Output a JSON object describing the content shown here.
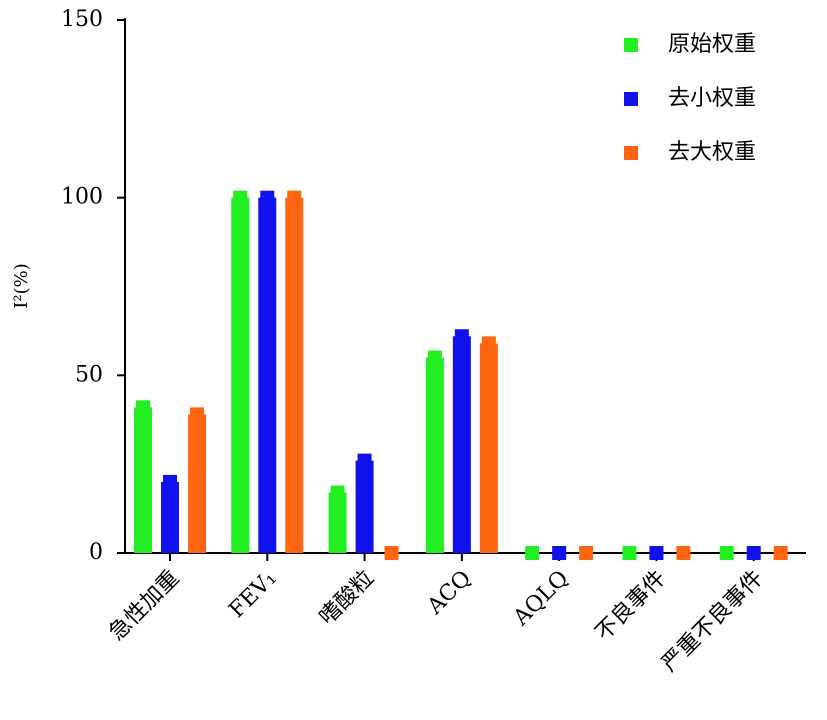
{
  "chart_data": {
    "type": "bar",
    "y_label": "I²(%)",
    "categories": [
      "急性加重",
      "FEV₁",
      "嗜酸粒",
      "ACQ",
      "AQLQ",
      "不良事件",
      "严重不良事件"
    ],
    "series": [
      {
        "name": "原始权重",
        "color": "#22ee22",
        "values": [
          41,
          100,
          17,
          55,
          0,
          0,
          0
        ]
      },
      {
        "name": "去小权重",
        "color": "#1111ee",
        "values": [
          20,
          100,
          26,
          61,
          0,
          0,
          0
        ]
      },
      {
        "name": "去大权重",
        "color": "#ff6611",
        "values": [
          39,
          100,
          0,
          59,
          0,
          0,
          0
        ]
      }
    ],
    "ylim": [
      0,
      150
    ],
    "yticks": [
      0,
      50,
      100,
      150
    ],
    "grid": false,
    "legend": "top-right"
  }
}
